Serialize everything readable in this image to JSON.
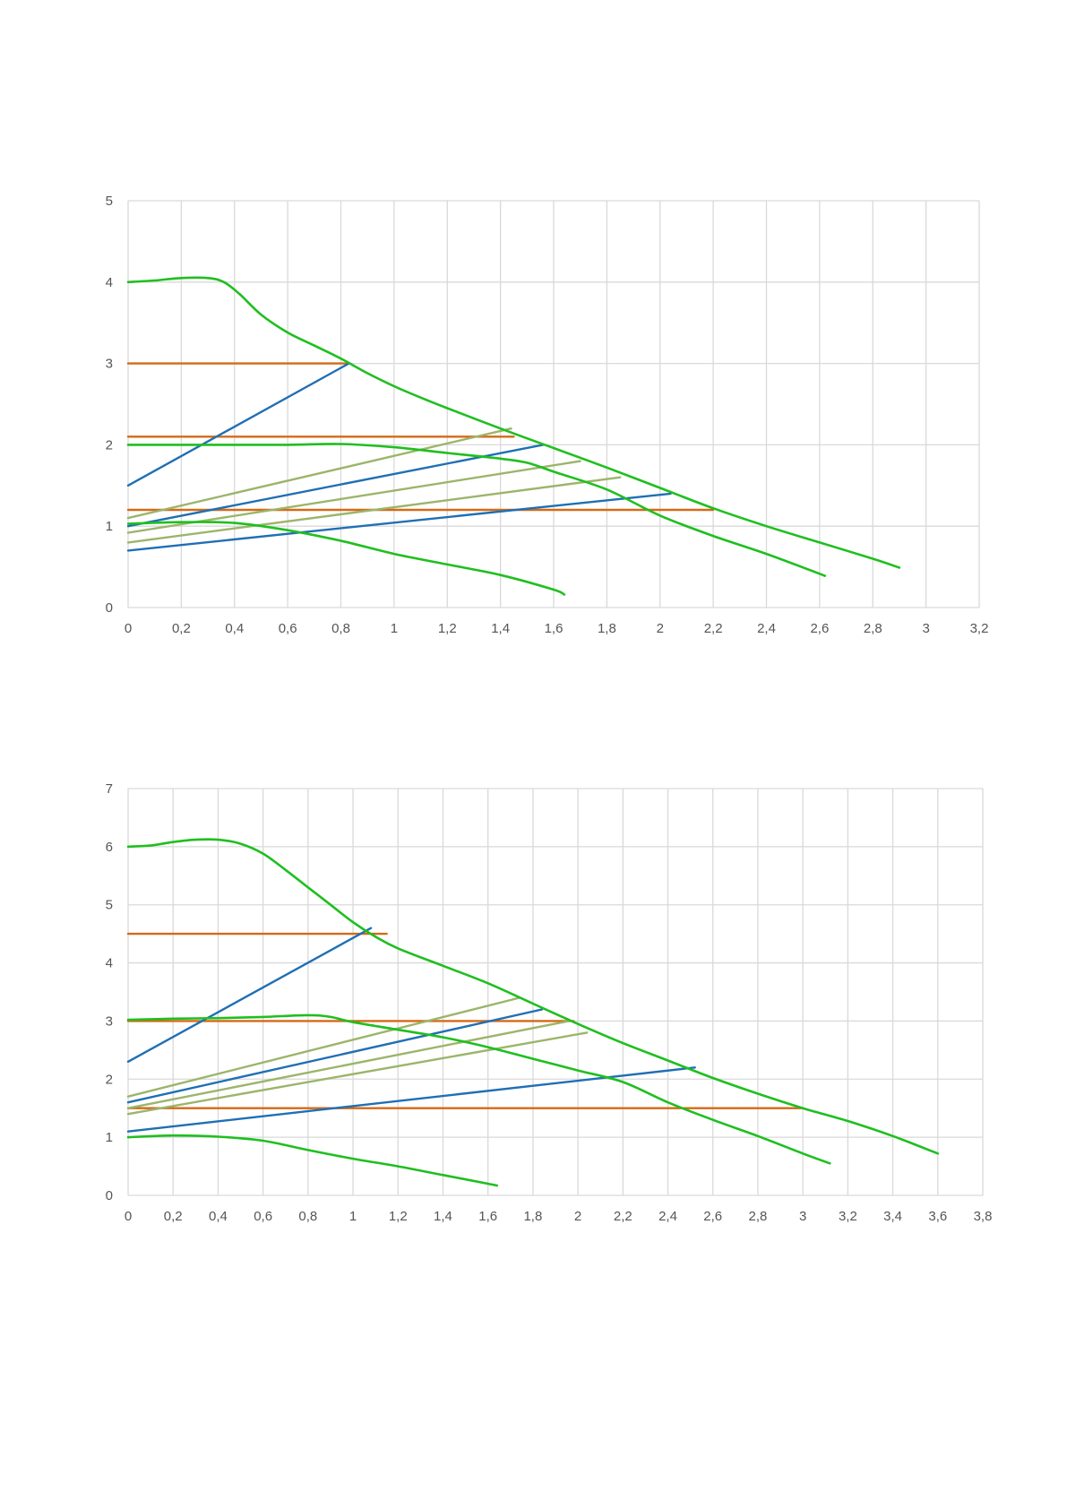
{
  "colors": {
    "curve_green": "#1fbf1f",
    "system_blue": "#1f6fb4",
    "system_olive": "#9bb56a",
    "level_orange": "#d46a16",
    "grid": "#d9d9d9",
    "tick_text": "#555555"
  },
  "chart_data": [
    {
      "type": "line",
      "title": "",
      "xlabel": "",
      "ylabel": "",
      "xlim": [
        0,
        3.2
      ],
      "ylim": [
        0,
        5
      ],
      "grid": true,
      "x_ticks": [
        "0",
        "0,2",
        "0,4",
        "0,6",
        "0,8",
        "1",
        "1,2",
        "1,4",
        "1,6",
        "1,8",
        "2",
        "2,2",
        "2,4",
        "2,6",
        "2,8",
        "3",
        "3,2"
      ],
      "y_ticks": [
        "0",
        "1",
        "2",
        "3",
        "4",
        "5"
      ],
      "series": [
        {
          "color": "curve_green",
          "points": [
            [
              0,
              4.0
            ],
            [
              0.1,
              4.02
            ],
            [
              0.2,
              4.05
            ],
            [
              0.3,
              4.05
            ],
            [
              0.36,
              4.0
            ],
            [
              0.42,
              3.85
            ],
            [
              0.5,
              3.6
            ],
            [
              0.6,
              3.38
            ],
            [
              0.7,
              3.22
            ],
            [
              0.8,
              3.06
            ],
            [
              0.9,
              2.88
            ],
            [
              1.0,
              2.72
            ],
            [
              1.1,
              2.58
            ],
            [
              1.2,
              2.45
            ],
            [
              1.4,
              2.2
            ],
            [
              1.6,
              1.96
            ],
            [
              1.8,
              1.72
            ],
            [
              2.0,
              1.47
            ],
            [
              2.2,
              1.22
            ],
            [
              2.4,
              1.0
            ],
            [
              2.6,
              0.8
            ],
            [
              2.8,
              0.6
            ],
            [
              2.9,
              0.49
            ]
          ]
        },
        {
          "color": "curve_green",
          "points": [
            [
              0,
              2.0
            ],
            [
              0.3,
              2.0
            ],
            [
              0.6,
              2.0
            ],
            [
              0.8,
              2.01
            ],
            [
              1.0,
              1.97
            ],
            [
              1.2,
              1.9
            ],
            [
              1.4,
              1.83
            ],
            [
              1.5,
              1.78
            ],
            [
              1.6,
              1.67
            ],
            [
              1.8,
              1.45
            ],
            [
              2.0,
              1.13
            ],
            [
              2.2,
              0.88
            ],
            [
              2.4,
              0.66
            ],
            [
              2.62,
              0.39
            ]
          ]
        },
        {
          "color": "curve_green",
          "points": [
            [
              0,
              1.03
            ],
            [
              0.2,
              1.05
            ],
            [
              0.4,
              1.04
            ],
            [
              0.6,
              0.95
            ],
            [
              0.8,
              0.82
            ],
            [
              1.0,
              0.66
            ],
            [
              1.2,
              0.53
            ],
            [
              1.4,
              0.4
            ],
            [
              1.6,
              0.22
            ],
            [
              1.64,
              0.16
            ]
          ]
        },
        {
          "color": "level_orange",
          "points": [
            [
              0,
              3.0
            ],
            [
              0.83,
              3.0
            ]
          ]
        },
        {
          "color": "level_orange",
          "points": [
            [
              0,
              2.1
            ],
            [
              1.45,
              2.1
            ]
          ]
        },
        {
          "color": "level_orange",
          "points": [
            [
              0,
              1.2
            ],
            [
              2.2,
              1.2
            ]
          ]
        },
        {
          "color": "system_blue",
          "points": [
            [
              0,
              1.5
            ],
            [
              0.83,
              3.0
            ]
          ]
        },
        {
          "color": "system_blue",
          "points": [
            [
              0,
              1.0
            ],
            [
              1.56,
              2.0
            ]
          ]
        },
        {
          "color": "system_blue",
          "points": [
            [
              0,
              0.7
            ],
            [
              2.04,
              1.4
            ]
          ]
        },
        {
          "color": "system_olive",
          "points": [
            [
              0,
              1.1
            ],
            [
              1.44,
              2.2
            ]
          ]
        },
        {
          "color": "system_olive",
          "points": [
            [
              0,
              0.92
            ],
            [
              1.7,
              1.8
            ]
          ]
        },
        {
          "color": "system_olive",
          "points": [
            [
              0,
              0.8
            ],
            [
              1.85,
              1.6
            ]
          ]
        }
      ]
    },
    {
      "type": "line",
      "title": "",
      "xlabel": "",
      "ylabel": "",
      "xlim": [
        0,
        3.8
      ],
      "ylim": [
        0,
        7
      ],
      "grid": true,
      "x_ticks": [
        "0",
        "0,2",
        "0,4",
        "0,6",
        "0,8",
        "1",
        "1,2",
        "1,4",
        "1,6",
        "1,8",
        "2",
        "2,2",
        "2,4",
        "2,6",
        "2,8",
        "3",
        "3,2",
        "3,4",
        "3,6",
        "3,8"
      ],
      "y_ticks": [
        "0",
        "1",
        "2",
        "3",
        "4",
        "5",
        "6",
        "7"
      ],
      "series": [
        {
          "color": "curve_green",
          "points": [
            [
              0,
              6.0
            ],
            [
              0.1,
              6.02
            ],
            [
              0.2,
              6.08
            ],
            [
              0.3,
              6.12
            ],
            [
              0.4,
              6.12
            ],
            [
              0.5,
              6.05
            ],
            [
              0.6,
              5.88
            ],
            [
              0.7,
              5.6
            ],
            [
              0.8,
              5.3
            ],
            [
              0.9,
              5.0
            ],
            [
              1.0,
              4.7
            ],
            [
              1.1,
              4.45
            ],
            [
              1.2,
              4.25
            ],
            [
              1.4,
              3.95
            ],
            [
              1.6,
              3.65
            ],
            [
              1.8,
              3.3
            ],
            [
              2.0,
              2.95
            ],
            [
              2.2,
              2.62
            ],
            [
              2.4,
              2.32
            ],
            [
              2.6,
              2.02
            ],
            [
              2.8,
              1.75
            ],
            [
              3.0,
              1.5
            ],
            [
              3.2,
              1.28
            ],
            [
              3.4,
              1.02
            ],
            [
              3.6,
              0.72
            ]
          ]
        },
        {
          "color": "curve_green",
          "points": [
            [
              0,
              3.02
            ],
            [
              0.2,
              3.04
            ],
            [
              0.4,
              3.05
            ],
            [
              0.6,
              3.07
            ],
            [
              0.8,
              3.1
            ],
            [
              0.9,
              3.07
            ],
            [
              1.0,
              2.98
            ],
            [
              1.2,
              2.85
            ],
            [
              1.4,
              2.72
            ],
            [
              1.6,
              2.55
            ],
            [
              1.8,
              2.35
            ],
            [
              2.0,
              2.15
            ],
            [
              2.2,
              1.95
            ],
            [
              2.4,
              1.6
            ],
            [
              2.6,
              1.3
            ],
            [
              2.8,
              1.02
            ],
            [
              3.0,
              0.72
            ],
            [
              3.12,
              0.55
            ]
          ]
        },
        {
          "color": "curve_green",
          "points": [
            [
              0,
              1.0
            ],
            [
              0.2,
              1.03
            ],
            [
              0.4,
              1.01
            ],
            [
              0.6,
              0.94
            ],
            [
              0.8,
              0.78
            ],
            [
              1.0,
              0.63
            ],
            [
              1.2,
              0.5
            ],
            [
              1.4,
              0.35
            ],
            [
              1.6,
              0.2
            ],
            [
              1.64,
              0.17
            ]
          ]
        },
        {
          "color": "level_orange",
          "points": [
            [
              0,
              4.5
            ],
            [
              1.15,
              4.5
            ]
          ]
        },
        {
          "color": "level_orange",
          "points": [
            [
              0,
              3.0
            ],
            [
              1.98,
              3.0
            ]
          ]
        },
        {
          "color": "level_orange",
          "points": [
            [
              0,
              1.5
            ],
            [
              3.0,
              1.5
            ]
          ]
        },
        {
          "color": "system_blue",
          "points": [
            [
              0,
              2.3
            ],
            [
              1.08,
              4.6
            ]
          ]
        },
        {
          "color": "system_blue",
          "points": [
            [
              0,
              1.6
            ],
            [
              1.84,
              3.2
            ]
          ]
        },
        {
          "color": "system_blue",
          "points": [
            [
              0,
              1.1
            ],
            [
              2.52,
              2.2
            ]
          ]
        },
        {
          "color": "system_olive",
          "points": [
            [
              0,
              1.7
            ],
            [
              1.74,
              3.4
            ]
          ]
        },
        {
          "color": "system_olive",
          "points": [
            [
              0,
              1.5
            ],
            [
              1.96,
              3.0
            ]
          ]
        },
        {
          "color": "system_olive",
          "points": [
            [
              0,
              1.4
            ],
            [
              2.04,
              2.8
            ]
          ]
        }
      ]
    }
  ]
}
